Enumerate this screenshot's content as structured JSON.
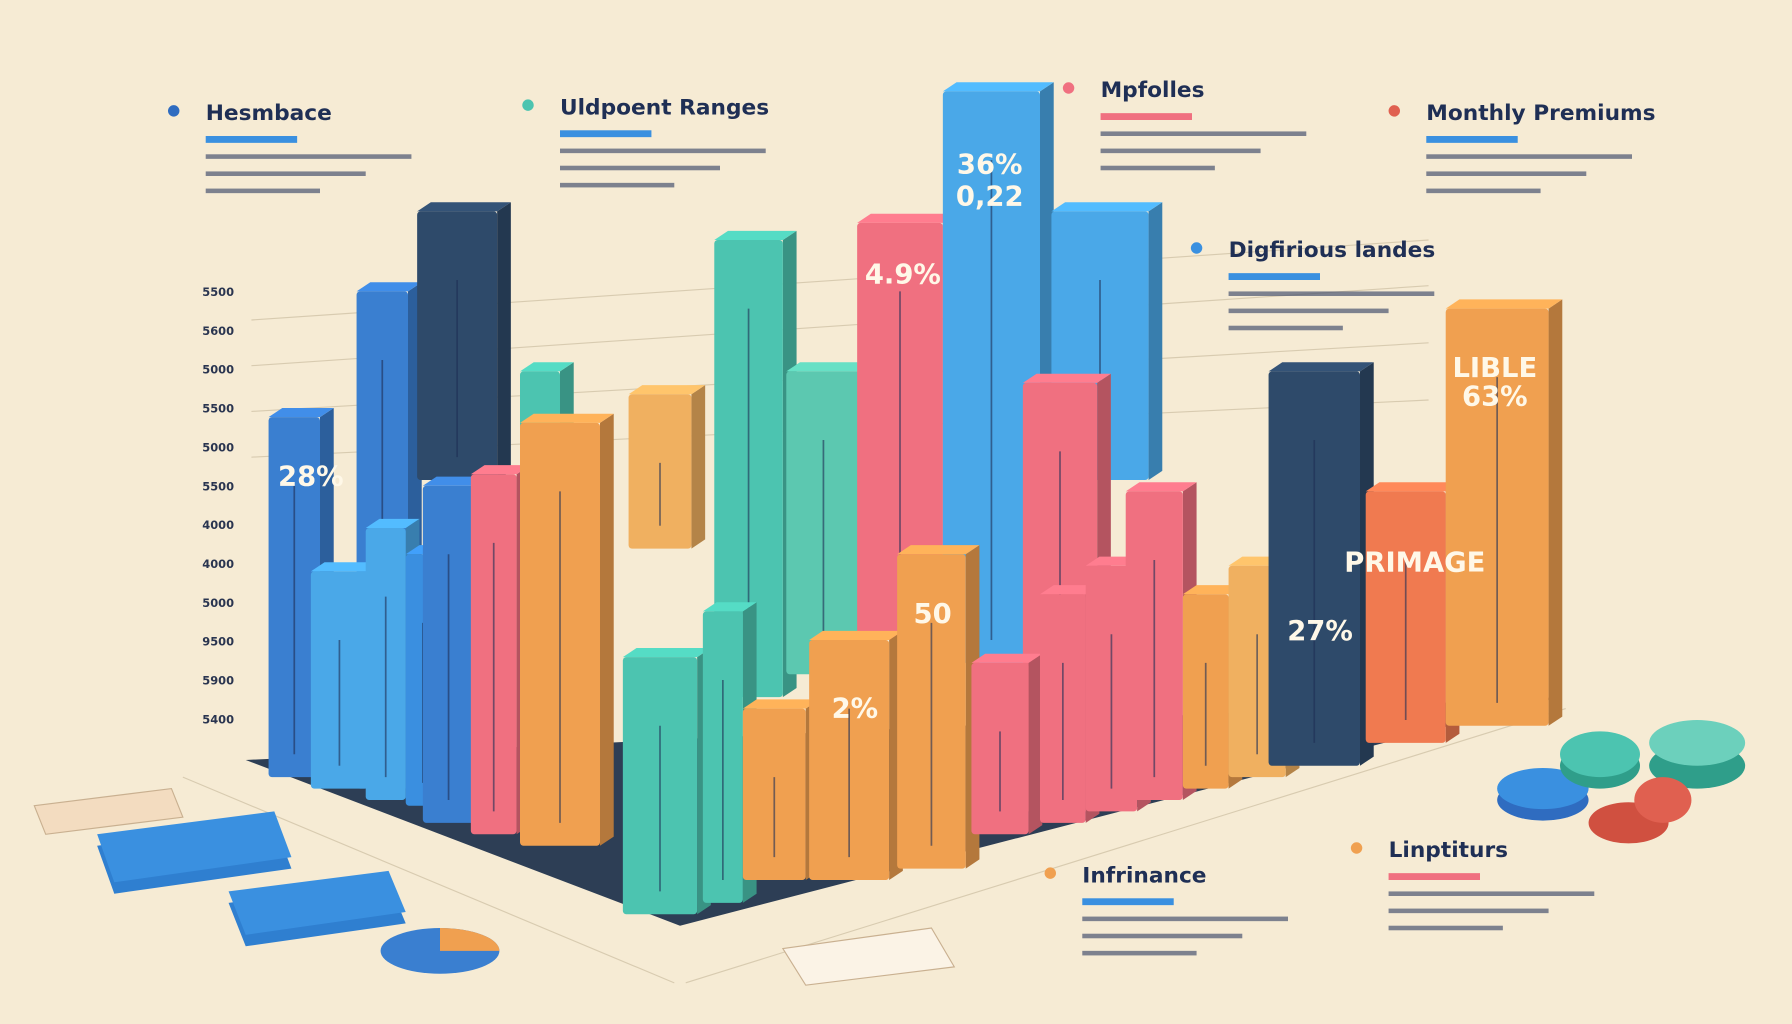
{
  "callouts": [
    {
      "title": "Hesmbace"
    },
    {
      "title": "Uldpoent Ranges"
    },
    {
      "title": "Mpfolles"
    },
    {
      "title": "Monthly Premiums"
    },
    {
      "title": "Digfirious landes"
    },
    {
      "title": "Infrinance"
    },
    {
      "title": "Linptiturs"
    }
  ],
  "axis_labels": [
    "5500",
    "5600",
    "5000",
    "5500",
    "5000",
    "5500",
    "4000",
    "4000",
    "5000",
    "9500",
    "5900",
    "5400"
  ],
  "bar_labels": [
    "28%",
    "36%",
    "4.9%",
    "50",
    "2%",
    "27%",
    "63%",
    "0,22",
    "LIBLE",
    "PRIMAGE"
  ]
}
